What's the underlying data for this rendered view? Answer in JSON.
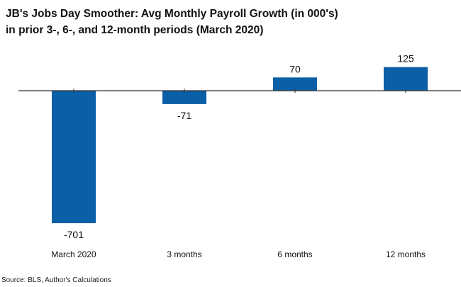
{
  "header": {
    "title_line1": "JB's Jobs Day Smoother: Avg Monthly Payroll Growth (in 000's)",
    "title_line2": "in prior 3-, 6-, and 12-month periods (March 2020)"
  },
  "footer": {
    "source": "Source: BLS, Author's Calculations"
  },
  "colors": {
    "bar": "#0a5fa6",
    "axis": "#333333",
    "label": "#111111"
  },
  "chart_data": {
    "type": "bar",
    "title": "JB's Jobs Day Smoother: Avg Monthly Payroll Growth (in 000's) in prior 3-, 6-, and 12-month periods (March 2020)",
    "xlabel": "",
    "ylabel": "",
    "categories": [
      "March 2020",
      "3 months",
      "6 months",
      "12 months"
    ],
    "values": [
      -701,
      -71,
      70,
      125
    ],
    "data_labels": [
      "-701",
      "-71",
      "70",
      "125"
    ],
    "ylim": [
      -701,
      125
    ],
    "grid": false,
    "legend": "none"
  }
}
